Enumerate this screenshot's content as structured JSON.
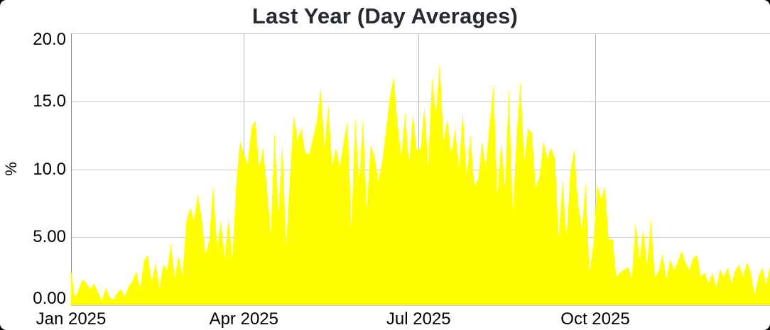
{
  "colors": {
    "area": "#ffff00",
    "title_text": "#272b30",
    "axis_text": "#000000",
    "grid_line_horizontal": "#cbcbcb",
    "grid_line_vertical": "#b5b5b5",
    "axis_line": "#858585",
    "card_background": "#ffffff",
    "page_corner": "#000000"
  },
  "chart_data": {
    "type": "area",
    "title": "Last Year (Day Averages)",
    "xlabel": "",
    "ylabel": "%",
    "ylim": [
      0,
      20
    ],
    "grid": true,
    "legend": "none",
    "x_unit": "day_of_year_2025",
    "x_sampling": {
      "start_day": 1,
      "day_step": 2,
      "end_day": 365
    },
    "y_ticks": [
      {
        "label": "20.0",
        "value": 20
      },
      {
        "label": "15.0",
        "value": 15
      },
      {
        "label": "10.0",
        "value": 10
      },
      {
        "label": "5.00",
        "value": 5
      },
      {
        "label": "0.00",
        "value": 0
      }
    ],
    "x_ticks": [
      {
        "label": "Jan 2025",
        "day": 1
      },
      {
        "label": "Apr 2025",
        "day": 91
      },
      {
        "label": "Jul 2025",
        "day": 182
      },
      {
        "label": "Oct 2025",
        "day": 274
      }
    ],
    "vertical_gridline_days": [
      91,
      182,
      274,
      365
    ],
    "values": [
      2.6,
      0.5,
      1.2,
      1.9,
      1.6,
      1.2,
      1.6,
      1.0,
      0.3,
      1.3,
      0.6,
      0.4,
      0.9,
      1.2,
      0.6,
      1.4,
      1.8,
      2.5,
      1.2,
      3.3,
      3.7,
      1.7,
      3.1,
      1.3,
      3.0,
      2.6,
      4.5,
      2.0,
      3.7,
      2.2,
      6.1,
      7.2,
      6.3,
      8.1,
      6.5,
      3.7,
      4.8,
      8.9,
      4.3,
      6.2,
      3.5,
      6.4,
      3.4,
      8.9,
      12.1,
      11.1,
      10.4,
      13.1,
      13.6,
      10.1,
      11.6,
      8.7,
      5.2,
      12.8,
      6.7,
      12.0,
      4.4,
      9.5,
      14.0,
      12.2,
      13.0,
      11.2,
      11.1,
      12.3,
      13.5,
      16.1,
      11.6,
      14.8,
      10.3,
      11.6,
      10.2,
      12.1,
      13.5,
      5.7,
      13.9,
      9.0,
      13.8,
      7.1,
      11.8,
      11.0,
      9.2,
      10.5,
      12.8,
      15.3,
      16.8,
      13.4,
      11.0,
      14.2,
      10.4,
      14.1,
      11.4,
      11.5,
      14.6,
      10.3,
      16.8,
      14.0,
      17.9,
      12.1,
      13.7,
      11.1,
      13.0,
      10.1,
      14.2,
      9.5,
      12.5,
      8.8,
      9.3,
      12.0,
      10.2,
      13.4,
      16.2,
      8.2,
      12.0,
      8.7,
      16.0,
      6.7,
      12.3,
      16.5,
      10.6,
      13.0,
      12.7,
      8.7,
      9.5,
      12.1,
      10.8,
      11.6,
      10.8,
      5.0,
      9.3,
      4.9,
      9.8,
      11.5,
      7.5,
      5.6,
      9.0,
      2.4,
      4.5,
      8.9,
      7.8,
      8.8,
      4.8,
      4.9,
      2.1,
      2.4,
      2.6,
      2.8,
      2.0,
      6.1,
      3.4,
      5.6,
      3.0,
      6.4,
      2.1,
      2.5,
      3.8,
      1.9,
      3.4,
      2.6,
      3.2,
      4.0,
      3.1,
      2.6,
      3.5,
      3.7,
      2.1,
      2.4,
      1.6,
      2.4,
      1.3,
      2.6,
      2.1,
      2.8,
      1.6,
      2.6,
      3.0,
      2.1,
      3.2,
      2.4,
      0.8,
      2.1,
      2.8,
      1.5,
      2.9
    ]
  }
}
